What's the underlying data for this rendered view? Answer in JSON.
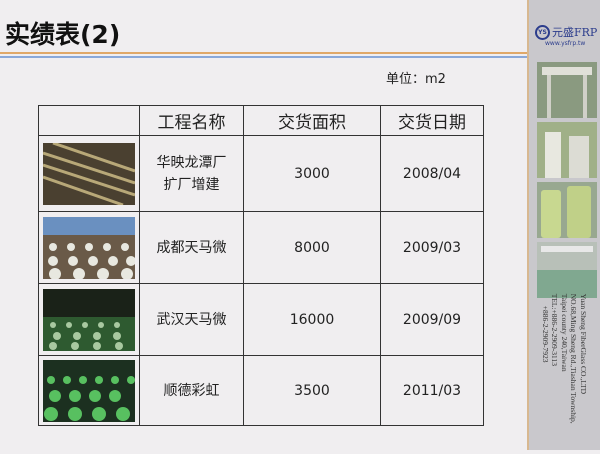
{
  "title": "实绩表(2)",
  "unit": "单位：m2",
  "table": {
    "headers": [
      "",
      "工程名称",
      "交货面积",
      "交货日期"
    ],
    "rows": [
      {
        "name_l1": "华映龙潭厂",
        "name_l2": "扩厂增建",
        "area": "3000",
        "date": "2008/04"
      },
      {
        "name_l1": "成都天马微",
        "name_l2": "",
        "area": "8000",
        "date": "2009/03"
      },
      {
        "name_l1": "武汉天马微",
        "name_l2": "",
        "area": "16000",
        "date": "2009/09"
      },
      {
        "name_l1": "顺德彩虹",
        "name_l2": "",
        "area": "3500",
        "date": "2011/03"
      }
    ]
  },
  "sidebar": {
    "logo_mark": "YS",
    "logo_name": "元盛FRP",
    "logo_url": "www.ysfrp.tw",
    "address": [
      "Yuan Sheng FiberGlass CO.,LTD",
      "NO.68,Ming Sheng Rd.,Tiashan Township,",
      "Taipei county 240,Taiwan",
      "TEL:+886-2-2909-3113",
      "+886-2-2909-7923"
    ]
  },
  "colors": {
    "accent_orange": "#e0a868",
    "accent_blue": "#8aa8d8",
    "brand": "#2c3d8c"
  }
}
